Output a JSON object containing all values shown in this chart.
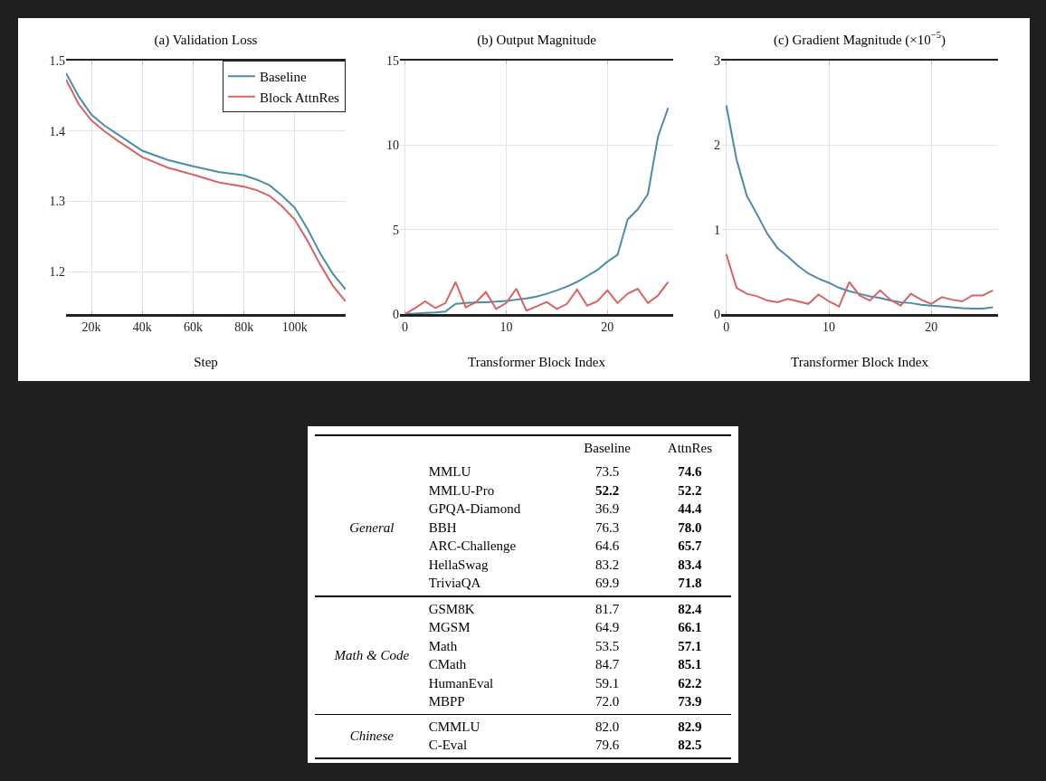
{
  "chart_data": [
    {
      "type": "line",
      "title": "(a) Validation Loss",
      "xlabel": "Step",
      "x": [
        10000,
        15000,
        20000,
        25000,
        30000,
        40000,
        50000,
        60000,
        70000,
        80000,
        85000,
        90000,
        95000,
        100000,
        105000,
        110000,
        115000,
        120000
      ],
      "series": [
        {
          "name": "Baseline",
          "color": "#4b8ca6",
          "values": [
            1.482,
            1.449,
            1.423,
            1.408,
            1.396,
            1.372,
            1.359,
            1.35,
            1.342,
            1.337,
            1.331,
            1.323,
            1.308,
            1.291,
            1.261,
            1.226,
            1.197,
            1.175
          ]
        },
        {
          "name": "Block AttnRes",
          "color": "#d66464",
          "values": [
            1.473,
            1.438,
            1.415,
            1.4,
            1.387,
            1.363,
            1.348,
            1.338,
            1.327,
            1.321,
            1.316,
            1.308,
            1.293,
            1.274,
            1.244,
            1.21,
            1.18,
            1.158
          ]
        }
      ],
      "xlim": [
        10000,
        120000
      ],
      "xticks": [
        {
          "value": 20000,
          "label": "20k"
        },
        {
          "value": 40000,
          "label": "40k"
        },
        {
          "value": 60000,
          "label": "60k"
        },
        {
          "value": 80000,
          "label": "80k"
        },
        {
          "value": 100000,
          "label": "100k"
        }
      ],
      "ylim": [
        1.14,
        1.5
      ],
      "yticks": [
        1.2,
        1.3,
        1.4,
        1.5
      ],
      "grid": true,
      "legend": "top right",
      "marker": "none",
      "line_style": "solid"
    },
    {
      "type": "line",
      "title": "(b) Output Magnitude",
      "xlabel": "Transformer Block Index",
      "x": [
        0,
        1,
        2,
        3,
        4,
        5,
        6,
        7,
        8,
        9,
        10,
        11,
        12,
        13,
        14,
        15,
        16,
        17,
        18,
        19,
        20,
        21,
        22,
        23,
        24,
        25,
        26
      ],
      "series": [
        {
          "color": "#4b8ca6",
          "values": [
            0,
            0.03,
            0.07,
            0.1,
            0.15,
            0.6,
            0.65,
            0.68,
            0.7,
            0.73,
            0.78,
            0.85,
            0.93,
            1.03,
            1.2,
            1.4,
            1.63,
            1.9,
            2.25,
            2.6,
            3.1,
            3.5,
            5.6,
            6.2,
            7.1,
            10.5,
            12.2
          ]
        },
        {
          "color": "#d66464",
          "values": [
            0,
            0.35,
            0.75,
            0.35,
            0.65,
            1.9,
            0.4,
            0.7,
            1.3,
            0.3,
            0.65,
            1.5,
            0.2,
            0.45,
            0.72,
            0.3,
            0.6,
            1.45,
            0.5,
            0.75,
            1.4,
            0.65,
            1.2,
            1.5,
            0.65,
            1.1,
            1.9
          ]
        }
      ],
      "xlim": [
        -0.5,
        26.5
      ],
      "xticks": [
        0,
        10,
        20
      ],
      "ylim": [
        0,
        15
      ],
      "yticks": [
        0,
        5,
        10,
        15
      ],
      "grid": true,
      "legend": false,
      "marker": "none",
      "line_style": "solid"
    },
    {
      "type": "line",
      "title": "(c) Gradient Magnitude (×10$^{−5}$)",
      "xlabel": "Transformer Block Index",
      "x": [
        0,
        1,
        2,
        3,
        4,
        5,
        6,
        7,
        8,
        9,
        10,
        11,
        12,
        13,
        14,
        15,
        16,
        17,
        18,
        19,
        20,
        21,
        22,
        23,
        24,
        25,
        26
      ],
      "series": [
        {
          "color": "#4b8ca6",
          "values": [
            2.47,
            1.83,
            1.4,
            1.18,
            0.95,
            0.78,
            0.68,
            0.57,
            0.48,
            0.42,
            0.37,
            0.31,
            0.27,
            0.24,
            0.21,
            0.19,
            0.16,
            0.14,
            0.13,
            0.11,
            0.1,
            0.09,
            0.08,
            0.07,
            0.065,
            0.065,
            0.08
          ]
        },
        {
          "color": "#d66464",
          "values": [
            0.71,
            0.31,
            0.24,
            0.21,
            0.16,
            0.14,
            0.18,
            0.15,
            0.12,
            0.23,
            0.15,
            0.09,
            0.38,
            0.22,
            0.16,
            0.28,
            0.17,
            0.1,
            0.24,
            0.17,
            0.12,
            0.2,
            0.17,
            0.15,
            0.22,
            0.22,
            0.28
          ]
        }
      ],
      "xlim": [
        -0.5,
        26.5
      ],
      "xticks": [
        0,
        10,
        20
      ],
      "ylim": [
        0,
        3
      ],
      "yticks": [
        0,
        1,
        2,
        3
      ],
      "grid": true,
      "legend": false,
      "marker": "none",
      "line_style": "solid"
    },
    {
      "type": "other",
      "title": "General",
      "categories": [
        "MMLU",
        "MMLU-Pro",
        "GPQA-Diamond",
        "BBH",
        "ARC-Challenge",
        "HellaSwag",
        "TriviaQA"
      ],
      "data_labels": true,
      "series": [
        {
          "name": "Baseline",
          "values": [
            73.5,
            52.2,
            36.9,
            76.3,
            64.6,
            83.2,
            69.9
          ],
          "value_labels": [
            "73.5",
            "52.2",
            "36.9",
            "76.3",
            "64.6",
            "83.2",
            "69.9"
          ]
        },
        {
          "name": "AttnRes",
          "values": [
            74.6,
            52.2,
            44.4,
            78.0,
            65.7,
            83.4,
            71.8
          ],
          "value_labels": [
            "74.6",
            "52.2",
            "44.4",
            "78.0",
            "65.7",
            "83.4",
            "71.8"
          ]
        }
      ]
    },
    {
      "type": "other",
      "title": "Math & Code",
      "categories": [
        "GSM8K",
        "MGSM",
        "Math",
        "CMath",
        "HumanEval",
        "MBPP"
      ],
      "data_labels": true,
      "series": [
        {
          "values": [
            81.7,
            64.9,
            53.5,
            84.7,
            59.1,
            72.0
          ],
          "value_labels": [
            "81.7",
            "64.9",
            "53.5",
            "84.7",
            "59.1",
            "72.0"
          ]
        },
        {
          "values": [
            82.4,
            66.1,
            57.1,
            85.1,
            62.2,
            73.9
          ],
          "value_labels": [
            "82.4",
            "66.1",
            "57.1",
            "85.1",
            "62.2",
            "73.9"
          ]
        }
      ]
    },
    {
      "type": "other",
      "title": "Chinese",
      "categories": [
        "CMMLU",
        "C-Eval"
      ],
      "data_labels": true,
      "series": [
        {
          "values": [
            82.0,
            79.6
          ],
          "value_labels": [
            "82.0",
            "79.6"
          ]
        },
        {
          "values": [
            82.9,
            82.5
          ],
          "value_labels": [
            "82.9",
            "82.5"
          ]
        }
      ]
    }
  ]
}
